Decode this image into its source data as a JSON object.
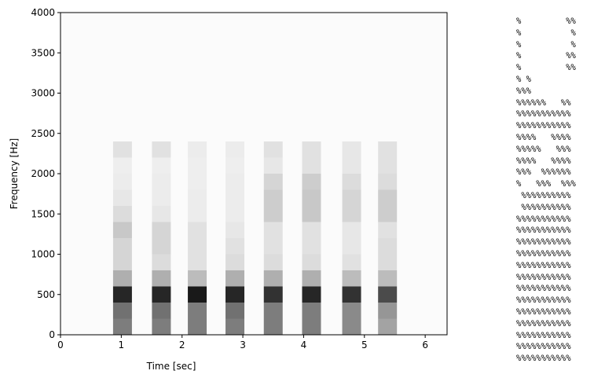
{
  "chart_data": {
    "type": "heatmap",
    "xlabel": "Time [sec]",
    "ylabel": "Frequency [Hz]",
    "x": [
      1.02,
      1.66,
      2.25,
      2.87,
      3.5,
      4.13,
      4.79,
      5.38
    ],
    "y": [
      100,
      300,
      500,
      700,
      900,
      1100,
      1300,
      1500,
      1700,
      1900,
      2100,
      2300
    ],
    "values": [
      [
        0.5,
        0.5,
        0.5,
        0.5,
        0.5,
        0.5,
        0.45,
        0.35
      ],
      [
        0.55,
        0.55,
        0.5,
        0.55,
        0.5,
        0.5,
        0.45,
        0.4
      ],
      [
        0.85,
        0.85,
        0.9,
        0.85,
        0.8,
        0.85,
        0.8,
        0.7
      ],
      [
        0.3,
        0.3,
        0.25,
        0.3,
        0.3,
        0.3,
        0.25,
        0.25
      ],
      [
        0.15,
        0.12,
        0.1,
        0.12,
        0.12,
        0.12,
        0.1,
        0.12
      ],
      [
        0.15,
        0.15,
        0.1,
        0.1,
        0.1,
        0.1,
        0.08,
        0.12
      ],
      [
        0.2,
        0.15,
        0.1,
        0.08,
        0.1,
        0.1,
        0.08,
        0.1
      ],
      [
        0.12,
        0.08,
        0.06,
        0.06,
        0.18,
        0.2,
        0.15,
        0.18
      ],
      [
        0.08,
        0.06,
        0.06,
        0.06,
        0.18,
        0.2,
        0.15,
        0.18
      ],
      [
        0.06,
        0.06,
        0.05,
        0.06,
        0.15,
        0.18,
        0.12,
        0.12
      ],
      [
        0.05,
        0.05,
        0.05,
        0.05,
        0.08,
        0.1,
        0.08,
        0.1
      ],
      [
        0.1,
        0.1,
        0.06,
        0.06,
        0.1,
        0.1,
        0.08,
        0.1
      ]
    ],
    "color": "#000000",
    "xlim": [
      0,
      6.36
    ],
    "ylim": [
      0,
      4000
    ],
    "xticks": [
      0,
      1,
      2,
      3,
      4,
      5,
      6
    ],
    "yticks": [
      0,
      500,
      1000,
      1500,
      2000,
      2500,
      3000,
      3500,
      4000
    ]
  },
  "ascii_art": {
    "lines": [
      "%         %%",
      "%          %",
      "%          %",
      "%         %%",
      "%         %%",
      "% %",
      "%%%",
      "%%%%%%   %%",
      "%%%%%%%%%%%",
      "%%%%%%%%%%%",
      "%%%%   %%%%",
      "%%%%%   %%%",
      "%%%%   %%%%",
      "%%%  %%%%%%",
      "%   %%%  %%%",
      " %%%%%%%%%%",
      " %%%%%%%%%%",
      "%%%%%%%%%%%",
      "%%%%%%%%%%%",
      "%%%%%%%%%%%",
      "%%%%%%%%%%%",
      "%%%%%%%%%%%",
      "%%%%%%%%%%%",
      "%%%%%%%%%%%",
      "%%%%%%%%%%%",
      "%%%%%%%%%%%",
      "%%%%%%%%%%%",
      "%%%%%%%%%%%",
      "%%%%%%%%%%%",
      "%%%%%%%%%%%"
    ]
  }
}
